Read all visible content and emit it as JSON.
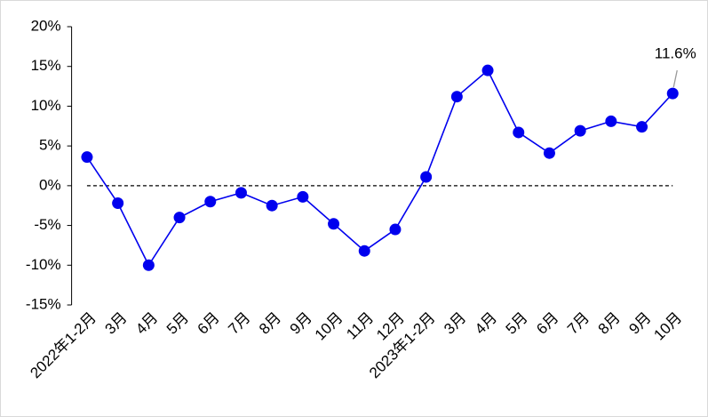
{
  "chart_data": {
    "type": "line",
    "categories": [
      "2022年1-2月",
      "3月",
      "4月",
      "5月",
      "6月",
      "7月",
      "8月",
      "9月",
      "10月",
      "11月",
      "12月",
      "2023年1-2月",
      "3月",
      "4月",
      "5月",
      "6月",
      "7月",
      "8月",
      "9月",
      "10月"
    ],
    "series": [
      {
        "color": "#0000ee",
        "values": [
          3.6,
          -2.2,
          -10.0,
          -4.0,
          -2.0,
          -0.9,
          -2.5,
          -1.4,
          -4.8,
          -8.2,
          -5.5,
          1.1,
          11.2,
          14.5,
          6.7,
          4.1,
          6.9,
          8.1,
          7.4,
          11.6
        ],
        "value_labels": [
          null,
          null,
          null,
          null,
          null,
          null,
          null,
          null,
          null,
          null,
          null,
          null,
          null,
          null,
          null,
          null,
          null,
          null,
          null,
          "11.6%"
        ]
      }
    ],
    "ylim": [
      -15,
      20
    ],
    "yticks": [
      {
        "value": -15,
        "label": "-15%"
      },
      {
        "value": -10,
        "label": "-10%"
      },
      {
        "value": -5,
        "label": "-5%"
      },
      {
        "value": 0,
        "label": "0%"
      },
      {
        "value": 5,
        "label": "5%"
      },
      {
        "value": 10,
        "label": "10%"
      },
      {
        "value": 15,
        "label": "15%"
      },
      {
        "value": 20,
        "label": "20%"
      }
    ],
    "zero_line": true
  }
}
